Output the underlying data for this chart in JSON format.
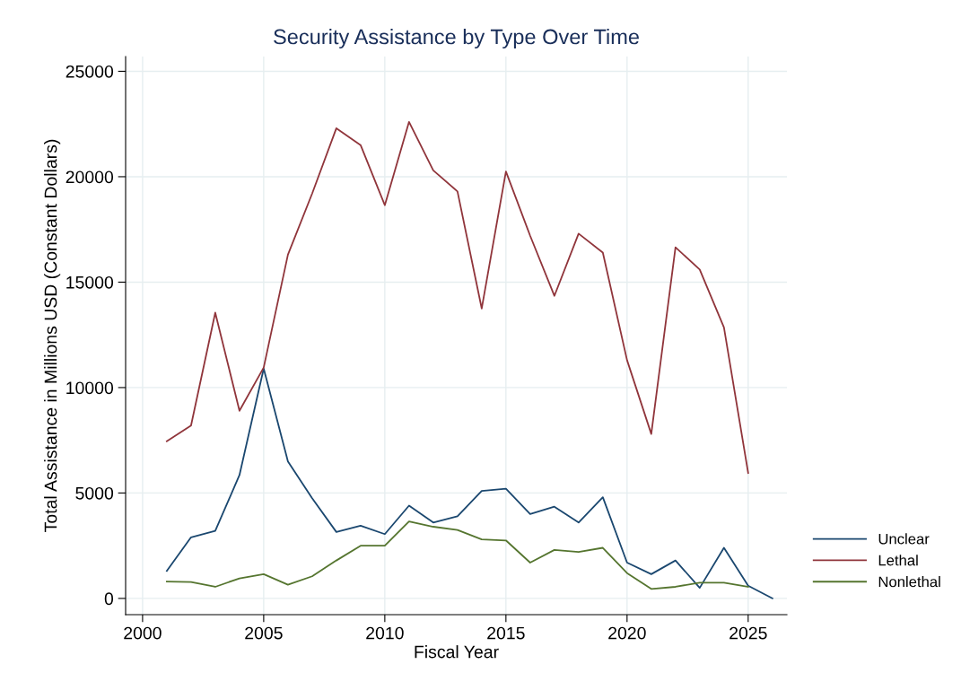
{
  "chart_data": {
    "type": "line",
    "title": "Security Assistance by Type Over Time",
    "xlabel": "Fiscal Year",
    "ylabel": "Total Assistance in Millions USD (Constant Dollars)",
    "x": [
      2001,
      2002,
      2003,
      2004,
      2005,
      2006,
      2007,
      2008,
      2009,
      2010,
      2011,
      2012,
      2013,
      2014,
      2015,
      2016,
      2017,
      2018,
      2019,
      2020,
      2021,
      2022,
      2023,
      2024,
      2025
    ],
    "series": [
      {
        "name": "Unclear",
        "color": "#1a476f",
        "x": [
          2001,
          2002,
          2003,
          2004,
          2005,
          2006,
          2007,
          2008,
          2009,
          2010,
          2011,
          2012,
          2013,
          2014,
          2015,
          2016,
          2017,
          2018,
          2019,
          2020,
          2021,
          2022,
          2023,
          2024,
          2025,
          2026
        ],
        "values": [
          1300,
          2900,
          3200,
          5850,
          10900,
          6500,
          4750,
          3150,
          3450,
          3050,
          4400,
          3600,
          3900,
          5100,
          5200,
          4000,
          4350,
          3600,
          4800,
          1700,
          1150,
          1800,
          500,
          2400,
          600,
          0
        ]
      },
      {
        "name": "Lethal",
        "color": "#90353b",
        "values": [
          7450,
          8200,
          13550,
          8900,
          10950,
          16300,
          19200,
          22300,
          21500,
          18650,
          22600,
          20300,
          19300,
          13750,
          20250,
          17200,
          14350,
          17300,
          16400,
          11300,
          7800,
          16650,
          15600,
          12850,
          5950
        ]
      },
      {
        "name": "Nonlethal",
        "color": "#55752f",
        "values": [
          800,
          780,
          550,
          950,
          1150,
          650,
          1050,
          1800,
          2500,
          2500,
          3650,
          3400,
          3250,
          2800,
          2750,
          1700,
          2300,
          2200,
          2400,
          1200,
          450,
          550,
          750,
          750,
          550
        ]
      }
    ],
    "xlim": [
      1999.3,
      2026.6
    ],
    "ylim": [
      -770,
      25700
    ],
    "xticks": [
      2000,
      2005,
      2010,
      2015,
      2020,
      2025
    ],
    "yticks": [
      0,
      5000,
      10000,
      15000,
      20000,
      25000
    ],
    "grid": true,
    "legend": "bottom right",
    "marker": "none",
    "line_style": "solid"
  }
}
